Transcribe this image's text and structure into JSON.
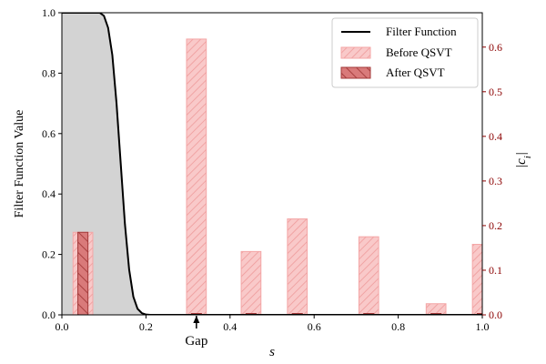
{
  "chart_data": {
    "type": "bar",
    "xlabel": "s",
    "ylabel_left": "Filter Function Value",
    "ylabel_right": "|c_i|",
    "xlim": [
      0.0,
      1.0
    ],
    "ylim_left": [
      0.0,
      1.0
    ],
    "ylim_right": [
      0.0,
      0.677
    ],
    "xticks": [
      "0.0",
      "0.2",
      "0.4",
      "0.6",
      "0.8",
      "1.0"
    ],
    "yticks_left": [
      "0.0",
      "0.2",
      "0.4",
      "0.6",
      "0.8",
      "1.0"
    ],
    "yticks_right": [
      "0.0",
      "0.1",
      "0.2",
      "0.3",
      "0.4",
      "0.5",
      "0.6"
    ],
    "annotation": {
      "text": "Gap",
      "x": 0.32
    },
    "filter_function": {
      "name": "Filter Function",
      "color": "#000000",
      "fill_color": "#d3d3d3",
      "x": [
        0.0,
        0.09,
        0.1,
        0.11,
        0.12,
        0.13,
        0.14,
        0.15,
        0.16,
        0.17,
        0.18,
        0.19,
        0.2,
        0.21,
        0.22,
        1.0
      ],
      "y": [
        1.0,
        1.0,
        0.99,
        0.95,
        0.86,
        0.7,
        0.5,
        0.3,
        0.15,
        0.06,
        0.02,
        0.006,
        0.001,
        0.0,
        0.0,
        0.0
      ]
    },
    "series": [
      {
        "name": "Before QSVT",
        "color": "#f08080",
        "x": [
          0.05,
          0.32,
          0.45,
          0.56,
          0.73,
          0.89,
          1.0
        ],
        "values": [
          0.185,
          0.618,
          0.142,
          0.215,
          0.175,
          0.025,
          0.158
        ]
      },
      {
        "name": "After QSVT",
        "color": "#cd5c5c",
        "x": [
          0.05,
          0.32,
          0.45,
          0.56,
          0.73,
          0.89,
          1.0
        ],
        "values": [
          0.185,
          0.0,
          0.0,
          0.0,
          0.0,
          0.0,
          0.0
        ]
      }
    ],
    "legend_position": "top-right",
    "grid": false
  }
}
